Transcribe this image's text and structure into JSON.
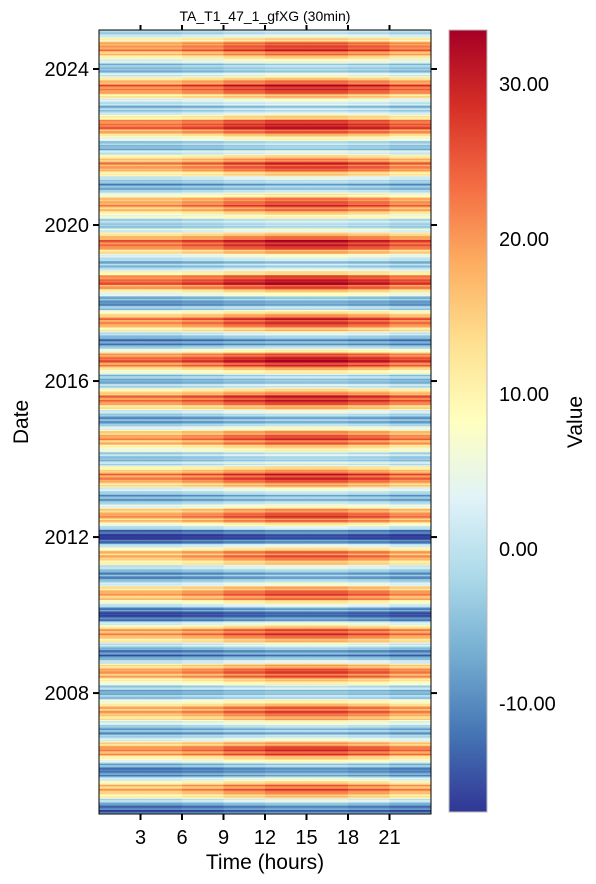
{
  "chart_data": {
    "type": "heatmap",
    "title": "TA_T1_47_1_gfXG (30min)",
    "xlabel": "Time (hours)",
    "ylabel": "Date",
    "x_ticks": [
      3,
      6,
      9,
      12,
      15,
      18,
      21
    ],
    "x_tick_labels": [
      "3",
      "6",
      "9",
      "12",
      "15",
      "18",
      "21"
    ],
    "xlim": [
      0,
      24
    ],
    "y_ticks": [
      2008,
      2012,
      2016,
      2020,
      2024
    ],
    "y_tick_labels": [
      "2008",
      "2012",
      "2016",
      "2020",
      "2024"
    ],
    "ylim": [
      2004.9,
      2025.0
    ],
    "colorbar": {
      "label": "Value",
      "ticks": [
        -10,
        0,
        10,
        20,
        30
      ],
      "tick_labels": [
        "-10.00",
        "0.00",
        "10.00",
        "20.00",
        "30.00"
      ],
      "range": [
        -17,
        33.5
      ],
      "colormap": "RdYlBu_r",
      "colors": [
        "#313695",
        "#4575b4",
        "#74add1",
        "#abd9e9",
        "#e0f3f8",
        "#ffffbf",
        "#fee090",
        "#fdae61",
        "#f46d43",
        "#d73027",
        "#a50026"
      ]
    },
    "summer_peaks": [
      {
        "year": 2005,
        "value": 21
      },
      {
        "year": 2006,
        "value": 24
      },
      {
        "year": 2007,
        "value": 22
      },
      {
        "year": 2008,
        "value": 23
      },
      {
        "year": 2009,
        "value": 23
      },
      {
        "year": 2010,
        "value": 22
      },
      {
        "year": 2011,
        "value": 21
      },
      {
        "year": 2012,
        "value": 23
      },
      {
        "year": 2013,
        "value": 25
      },
      {
        "year": 2014,
        "value": 23
      },
      {
        "year": 2015,
        "value": 26
      },
      {
        "year": 2016,
        "value": 28
      },
      {
        "year": 2017,
        "value": 25
      },
      {
        "year": 2018,
        "value": 28
      },
      {
        "year": 2019,
        "value": 27
      },
      {
        "year": 2020,
        "value": 23
      },
      {
        "year": 2021,
        "value": 24
      },
      {
        "year": 2022,
        "value": 27
      },
      {
        "year": 2023,
        "value": 26
      },
      {
        "year": 2024,
        "value": 24
      }
    ],
    "winter_lows": [
      {
        "year": 2005,
        "value": -12
      },
      {
        "year": 2006,
        "value": -10
      },
      {
        "year": 2007,
        "value": -6
      },
      {
        "year": 2008,
        "value": -5
      },
      {
        "year": 2009,
        "value": -10
      },
      {
        "year": 2010,
        "value": -14
      },
      {
        "year": 2011,
        "value": -8
      },
      {
        "year": 2012,
        "value": -16
      },
      {
        "year": 2013,
        "value": -6
      },
      {
        "year": 2014,
        "value": -3
      },
      {
        "year": 2015,
        "value": -7
      },
      {
        "year": 2016,
        "value": -5
      },
      {
        "year": 2017,
        "value": -9
      },
      {
        "year": 2018,
        "value": -8
      },
      {
        "year": 2019,
        "value": -4
      },
      {
        "year": 2020,
        "value": -2
      },
      {
        "year": 2021,
        "value": -6
      },
      {
        "year": 2022,
        "value": -4
      },
      {
        "year": 2023,
        "value": -3
      },
      {
        "year": 2024,
        "value": -4
      },
      {
        "year": 2025,
        "value": -3
      }
    ]
  }
}
